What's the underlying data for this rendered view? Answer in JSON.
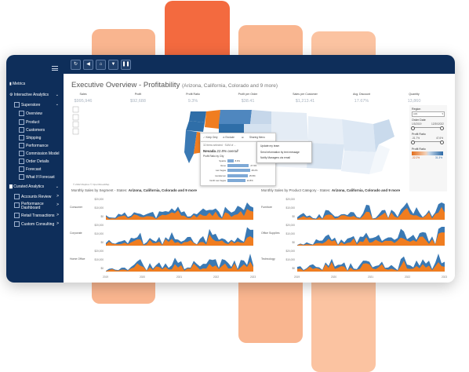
{
  "colors": {
    "accent_orange": "#f07d20",
    "accent_blue": "#3a79b4",
    "sidebar_bg": "#0e2e5a",
    "bar_light": "#f9b58f",
    "bar_dark": "#f36a3f"
  },
  "sidebar": {
    "items": [
      {
        "label": "Metrics",
        "icon": "bar-chart-icon",
        "indent": 0
      },
      {
        "label": "Interactive Analytics",
        "icon": "gear-icon",
        "indent": 0,
        "chevron": "⌄"
      },
      {
        "label": "Superstore",
        "icon": "box-icon",
        "indent": 1,
        "chevron": "⌄"
      },
      {
        "label": "Overview",
        "icon": "box-icon",
        "indent": 2
      },
      {
        "label": "Product",
        "icon": "box-icon",
        "indent": 2
      },
      {
        "label": "Customers",
        "icon": "box-icon",
        "indent": 2
      },
      {
        "label": "Shipping",
        "icon": "box-icon",
        "indent": 2
      },
      {
        "label": "Performance",
        "icon": "box-icon",
        "indent": 2
      },
      {
        "label": "Commission Model",
        "icon": "box-icon",
        "indent": 2
      },
      {
        "label": "Order Details",
        "icon": "box-icon",
        "indent": 2
      },
      {
        "label": "Forecast",
        "icon": "box-icon",
        "indent": 2
      },
      {
        "label": "What If Forecast",
        "icon": "box-icon",
        "indent": 2
      },
      {
        "label": "Curated Analytics",
        "icon": "book-icon",
        "indent": 0,
        "chevron": "⌄"
      },
      {
        "label": "Accounts Review",
        "icon": "box-icon",
        "indent": 1,
        "chevron": ">"
      },
      {
        "label": "Performance Dashboard",
        "icon": "box-icon",
        "indent": 1,
        "chevron": ">"
      },
      {
        "label": "Retail Transactions",
        "icon": "box-icon",
        "indent": 1,
        "chevron": ">"
      },
      {
        "label": "Custom Consulting",
        "icon": "box-icon",
        "indent": 1,
        "chevron": ">"
      }
    ]
  },
  "toolbar": {
    "buttons": [
      "refresh-button",
      "back-button",
      "home-button",
      "filter-button",
      "pause-button"
    ]
  },
  "dashboard": {
    "title": "Executive Overview - Profitability",
    "title_suffix": "(Arizona, California, Colorado and 9 more)",
    "kpis": [
      {
        "label": "Sales",
        "value": "$995,946"
      },
      {
        "label": "Profit",
        "value": "$92,688"
      },
      {
        "label": "Profit Ratio",
        "value": "9.3%"
      },
      {
        "label": "Profit per Order",
        "value": "$38.41"
      },
      {
        "label": "Sales per Customer",
        "value": "$1,213.41"
      },
      {
        "label": "Avg. Discount",
        "value": "17.67%"
      },
      {
        "label": "Quantity",
        "value": "13,860"
      }
    ],
    "copyright": "© 2022 Mapbox  © OpenStreetMap",
    "tooltip_actions": [
      "✓ Keep Only",
      "⊘ Exclude",
      "⊞",
      "Sharing Menu"
    ],
    "tooltip_selected": "32 items selected · SUM of ...",
    "tooltip": {
      "state": "Nevada",
      "value": "22.8% overall",
      "subtitle": "Profit Ratio by City",
      "cities": [
        {
          "name": "Sparks",
          "value": "8.9%",
          "ratio": 0.2
        },
        {
          "name": "Reno",
          "value": "27.9%",
          "ratio": 0.72
        },
        {
          "name": "Las Vegas",
          "value": "28.2%",
          "ratio": 0.75
        },
        {
          "name": "Henderson",
          "value": "25.8%",
          "ratio": 0.68
        },
        {
          "name": "North Las Vegas",
          "value": "22.8%",
          "ratio": 0.6
        }
      ]
    },
    "context_menu": [
      "Update my team",
      "Send information by text message",
      "Notify Managers via email"
    ],
    "right_panel": {
      "region_label": "Region",
      "region_value": "(All)",
      "order_date_label": "Order Date",
      "order_date_start": "1/3/2019",
      "order_date_end": "12/30/2022",
      "profit_ratio_label": "Profit Ratio",
      "profit_ratio_min": "-31.7%",
      "profit_ratio_max": "47.6%",
      "legend_label": "Profit Ratio",
      "legend_min": "-32.2%",
      "legend_max": "31.3%"
    },
    "left_chart": {
      "title": "Monthly Sales by Segment",
      "states_prefix": " - States: ",
      "states": "Arizona, California, Colorado and 9 more",
      "rows": [
        "Consumer",
        "Corporate",
        "Home Office"
      ],
      "yticks": [
        "$20,000",
        "$10,000",
        "$0"
      ],
      "xticks": [
        "2019",
        "2020",
        "2021",
        "2022",
        "2023"
      ]
    },
    "right_chart": {
      "title": "Monthly Sales by Product Category",
      "states_prefix": " - States: ",
      "states": "Arizona, California, Colorado and 9 more",
      "rows": [
        "Furniture",
        "Office Supplies",
        "Technology"
      ],
      "yticks": [
        "$20,000",
        "$10,000",
        "$0"
      ],
      "xticks": [
        "2019",
        "2020",
        "2021",
        "2022",
        "2023"
      ]
    }
  }
}
